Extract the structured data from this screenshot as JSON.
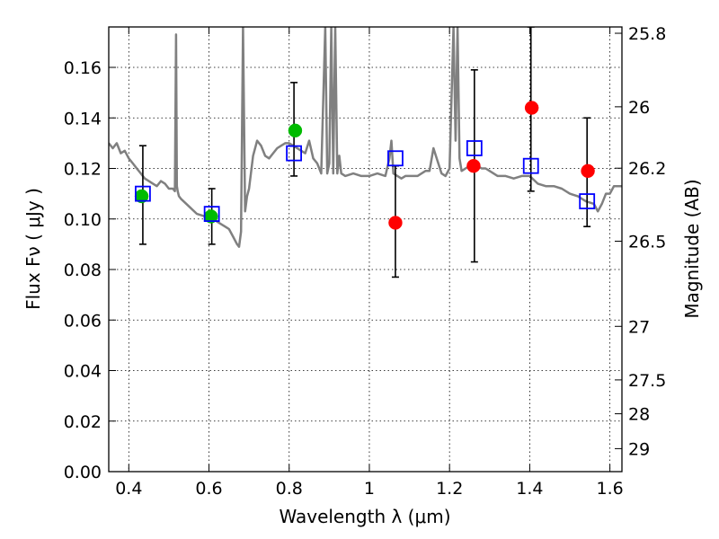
{
  "chart_data": {
    "type": "scatter",
    "title": "",
    "xlabel": "Wavelength  λ (μm)",
    "ylabel": "Flux  Fν  ( μJy )",
    "y2label": "Magnitude (AB)",
    "xlim": [
      0.35,
      1.63
    ],
    "ylim": [
      0.0,
      0.176
    ],
    "grid": true,
    "colors": {
      "model": "#808080",
      "green": "#00bb00",
      "red": "#ff0000",
      "square": "#0000ff",
      "errorbar": "#000000"
    },
    "x_ticks": [
      0.4,
      0.6,
      0.8,
      1.0,
      1.2,
      1.4,
      1.6
    ],
    "x_tick_labels": [
      "0.4",
      "0.6",
      "0.8",
      "1",
      "1.2",
      "1.4",
      "1.6"
    ],
    "y_ticks": [
      0.0,
      0.02,
      0.04,
      0.06,
      0.08,
      0.1,
      0.12,
      0.14,
      0.16
    ],
    "y_tick_labels": [
      "0.00",
      "0.02",
      "0.04",
      "0.06",
      "0.08",
      "0.10",
      "0.12",
      "0.14",
      "0.16"
    ],
    "y2_ticks": [
      {
        "label": "25.8",
        "flux": 0.1735
      },
      {
        "label": "26",
        "flux": 0.1444
      },
      {
        "label": "26.2",
        "flux": 0.1201
      },
      {
        "label": "26.5",
        "flux": 0.0912
      },
      {
        "label": "27",
        "flux": 0.0575
      },
      {
        "label": "27.5",
        "flux": 0.0363
      },
      {
        "label": "28",
        "flux": 0.0229
      },
      {
        "label": "29",
        "flux": 0.0091
      }
    ],
    "series": [
      {
        "marker": "line",
        "x": [
          0.35,
          0.36,
          0.37,
          0.38,
          0.39,
          0.4,
          0.41,
          0.42,
          0.43,
          0.44,
          0.45,
          0.46,
          0.47,
          0.48,
          0.49,
          0.5,
          0.51,
          0.515,
          0.518,
          0.52,
          0.522,
          0.525,
          0.53,
          0.55,
          0.57,
          0.59,
          0.61,
          0.62,
          0.63,
          0.64,
          0.65,
          0.66,
          0.67,
          0.675,
          0.68,
          0.685,
          0.69,
          0.695,
          0.7,
          0.71,
          0.72,
          0.73,
          0.74,
          0.75,
          0.76,
          0.77,
          0.78,
          0.79,
          0.8,
          0.81,
          0.82,
          0.83,
          0.84,
          0.85,
          0.86,
          0.87,
          0.88,
          0.89,
          0.895,
          0.9,
          0.905,
          0.91,
          0.915,
          0.92,
          0.925,
          0.93,
          0.94,
          0.96,
          0.98,
          1.0,
          1.02,
          1.04,
          1.05,
          1.055,
          1.06,
          1.07,
          1.08,
          1.09,
          1.1,
          1.12,
          1.14,
          1.15,
          1.16,
          1.17,
          1.18,
          1.19,
          1.2,
          1.21,
          1.215,
          1.22,
          1.225,
          1.23,
          1.24,
          1.25,
          1.26,
          1.27,
          1.28,
          1.29,
          1.3,
          1.32,
          1.34,
          1.36,
          1.38,
          1.4,
          1.42,
          1.44,
          1.46,
          1.48,
          1.5,
          1.52,
          1.54,
          1.56,
          1.57,
          1.58,
          1.59,
          1.6,
          1.61,
          1.62,
          1.63
        ],
        "values": [
          0.13,
          0.128,
          0.13,
          0.126,
          0.127,
          0.124,
          0.122,
          0.12,
          0.118,
          0.116,
          0.115,
          0.114,
          0.113,
          0.115,
          0.114,
          0.112,
          0.112,
          0.111,
          0.173,
          0.113,
          0.111,
          0.109,
          0.108,
          0.105,
          0.102,
          0.101,
          0.1,
          0.099,
          0.098,
          0.097,
          0.096,
          0.093,
          0.09,
          0.089,
          0.095,
          0.176,
          0.103,
          0.109,
          0.112,
          0.125,
          0.131,
          0.129,
          0.125,
          0.124,
          0.126,
          0.128,
          0.129,
          0.13,
          0.13,
          0.129,
          0.128,
          0.127,
          0.126,
          0.131,
          0.124,
          0.122,
          0.118,
          0.176,
          0.118,
          0.122,
          0.176,
          0.118,
          0.176,
          0.118,
          0.125,
          0.118,
          0.117,
          0.118,
          0.117,
          0.117,
          0.118,
          0.117,
          0.124,
          0.131,
          0.118,
          0.117,
          0.116,
          0.117,
          0.117,
          0.117,
          0.119,
          0.119,
          0.128,
          0.123,
          0.118,
          0.117,
          0.12,
          0.176,
          0.131,
          0.176,
          0.124,
          0.119,
          0.12,
          0.121,
          0.121,
          0.121,
          0.12,
          0.12,
          0.119,
          0.117,
          0.117,
          0.116,
          0.117,
          0.117,
          0.114,
          0.113,
          0.113,
          0.112,
          0.11,
          0.109,
          0.107,
          0.106,
          0.103,
          0.106,
          0.11,
          0.11,
          0.113,
          0.113,
          0.113
        ]
      },
      {
        "marker": "circle-green",
        "x": [
          0.432,
          0.605,
          0.815
        ],
        "values": [
          0.109,
          0.101,
          0.135
        ]
      },
      {
        "marker": "circle-red",
        "x": [
          1.065,
          1.26,
          1.405,
          1.545
        ],
        "values": [
          0.0985,
          0.121,
          0.144,
          0.119
        ]
      },
      {
        "marker": "square-blue",
        "x": [
          0.435,
          0.607,
          0.812,
          1.065,
          1.262,
          1.403,
          1.543
        ],
        "values": [
          0.11,
          0.102,
          0.126,
          0.124,
          0.128,
          0.121,
          0.107
        ]
      },
      {
        "marker": "errorbar",
        "x": [
          0.435,
          0.607,
          0.812,
          1.065,
          1.262,
          1.403,
          1.543
        ],
        "values": [
          0.11,
          0.102,
          0.126,
          0.124,
          0.128,
          0.121,
          0.107
        ],
        "lower": [
          0.09,
          0.09,
          0.117,
          0.077,
          0.083,
          0.111,
          0.097
        ],
        "upper": [
          0.129,
          0.112,
          0.154,
          0.121,
          0.159,
          0.176,
          0.14
        ]
      }
    ]
  }
}
